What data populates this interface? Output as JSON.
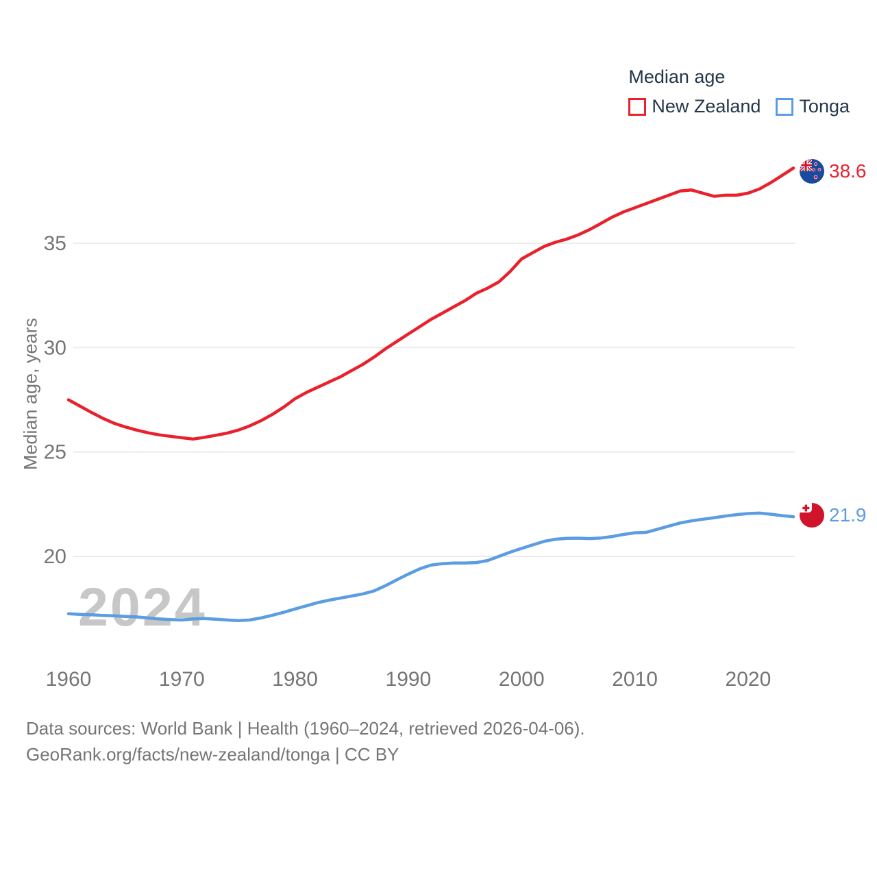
{
  "watermark": "2024",
  "legend": {
    "title": "Median age",
    "items": [
      {
        "label": "New Zealand",
        "color": "#e9212d"
      },
      {
        "label": "Tonga",
        "color": "#5b9ce2"
      }
    ]
  },
  "endpoints": [
    {
      "series": "New Zealand",
      "value": "38.6",
      "color": "#e9212d",
      "flag": "new-zealand-flag"
    },
    {
      "series": "Tonga",
      "value": "21.9",
      "color": "#5b9ce2",
      "flag": "tonga-flag"
    }
  ],
  "footer": {
    "line1": "Data sources: World Bank | Health (1960–2024, retrieved 2026-04-06).",
    "line2": "GeoRank.org/facts/new-zealand/tonga | CC BY"
  },
  "chart_data": {
    "type": "line",
    "title": "Median age",
    "xlabel": "",
    "ylabel": "Median age, years",
    "x_start": 1960,
    "x_end": 2024,
    "x_step": 1,
    "x_ticks": [
      1960,
      1970,
      1980,
      1990,
      2000,
      2010,
      2020
    ],
    "y_ticks": [
      20,
      25,
      30,
      35
    ],
    "ylim": [
      16.5,
      39.5
    ],
    "grid": true,
    "legend_position": "top-right",
    "series": [
      {
        "name": "New Zealand",
        "color": "#e9212d",
        "end_label": "38.6",
        "values": [
          27.5,
          27.2,
          26.9,
          26.62,
          26.38,
          26.2,
          26.05,
          25.92,
          25.82,
          25.75,
          25.68,
          25.62,
          25.7,
          25.8,
          25.9,
          26.05,
          26.25,
          26.5,
          26.8,
          27.15,
          27.55,
          27.85,
          28.1,
          28.35,
          28.6,
          28.9,
          29.2,
          29.55,
          29.95,
          30.3,
          30.65,
          31.0,
          31.35,
          31.65,
          31.95,
          32.25,
          32.6,
          32.85,
          33.15,
          33.65,
          34.25,
          34.55,
          34.85,
          35.05,
          35.2,
          35.4,
          35.65,
          35.95,
          36.25,
          36.5,
          36.7,
          36.9,
          37.1,
          37.3,
          37.5,
          37.55,
          37.4,
          37.25,
          37.3,
          37.3,
          37.4,
          37.6,
          37.9,
          38.25,
          38.6
        ]
      },
      {
        "name": "Tonga",
        "color": "#5b9ce2",
        "end_label": "21.9",
        "values": [
          17.25,
          17.22,
          17.2,
          17.17,
          17.15,
          17.12,
          17.1,
          17.05,
          17.0,
          16.97,
          16.95,
          17.0,
          17.02,
          16.99,
          16.95,
          16.92,
          16.95,
          17.05,
          17.18,
          17.32,
          17.48,
          17.63,
          17.78,
          17.9,
          18.0,
          18.1,
          18.2,
          18.35,
          18.6,
          18.88,
          19.15,
          19.4,
          19.58,
          19.65,
          19.68,
          19.68,
          19.7,
          19.8,
          20.0,
          20.2,
          20.38,
          20.55,
          20.72,
          20.82,
          20.86,
          20.87,
          20.85,
          20.88,
          20.95,
          21.05,
          21.13,
          21.15,
          21.3,
          21.45,
          21.6,
          21.7,
          21.78,
          21.85,
          21.93,
          22.0,
          22.05,
          22.07,
          22.02,
          21.95,
          21.9
        ]
      }
    ]
  }
}
